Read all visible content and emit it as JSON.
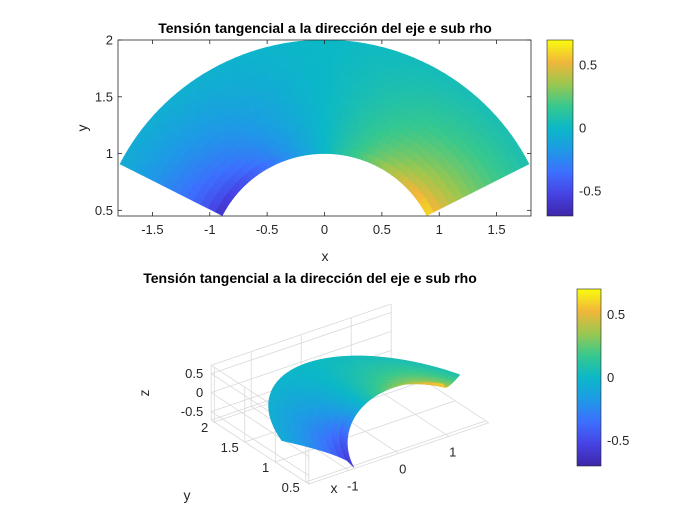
{
  "chart_data": [
    {
      "type": "heatmap",
      "view": "2d",
      "title": "Tensión tangencial a la dirección del eje e sub rho",
      "xlabel": "x",
      "ylabel": "y",
      "xlim": [
        -1.8,
        1.8
      ],
      "ylim": [
        0.45,
        2
      ],
      "xticks": [
        "-1.5",
        "-1",
        "-0.5",
        "0",
        "0.5",
        "1",
        "1.5"
      ],
      "yticks": [
        "0.5",
        "1",
        "1.5",
        "2"
      ],
      "domain": {
        "r_inner": 1,
        "r_outer": 2,
        "theta_min_deg": 27,
        "theta_max_deg": 153
      },
      "field": "tau(r,theta) = 0.7 * cos(theta)/sin(27deg) * (1 - ((r-1)/1)^0.55 * 0.9)",
      "colorbar": {
        "min": -0.7,
        "max": 0.7,
        "ticks": [
          "0.5",
          "0",
          "-0.5"
        ],
        "colormap": "parula"
      },
      "grid": false
    },
    {
      "type": "heatmap",
      "view": "3d",
      "title": "Tensión tangencial a la dirección del eje e sub rho",
      "xlabel": "x",
      "ylabel": "y",
      "zlabel": "z",
      "xticks": [
        "-1",
        "0",
        "1"
      ],
      "yticks": [
        "0.5",
        "1",
        "1.5",
        "2"
      ],
      "zticks": [
        "0.5",
        "0",
        "-0.5"
      ],
      "xlim": [
        -1.8,
        1.8
      ],
      "ylim": [
        0.45,
        2
      ],
      "zlim": [
        -0.7,
        0.7
      ],
      "colorbar": {
        "min": -0.7,
        "max": 0.7,
        "ticks": [
          "0.5",
          "0",
          "-0.5"
        ],
        "colormap": "parula"
      },
      "grid": true
    }
  ]
}
